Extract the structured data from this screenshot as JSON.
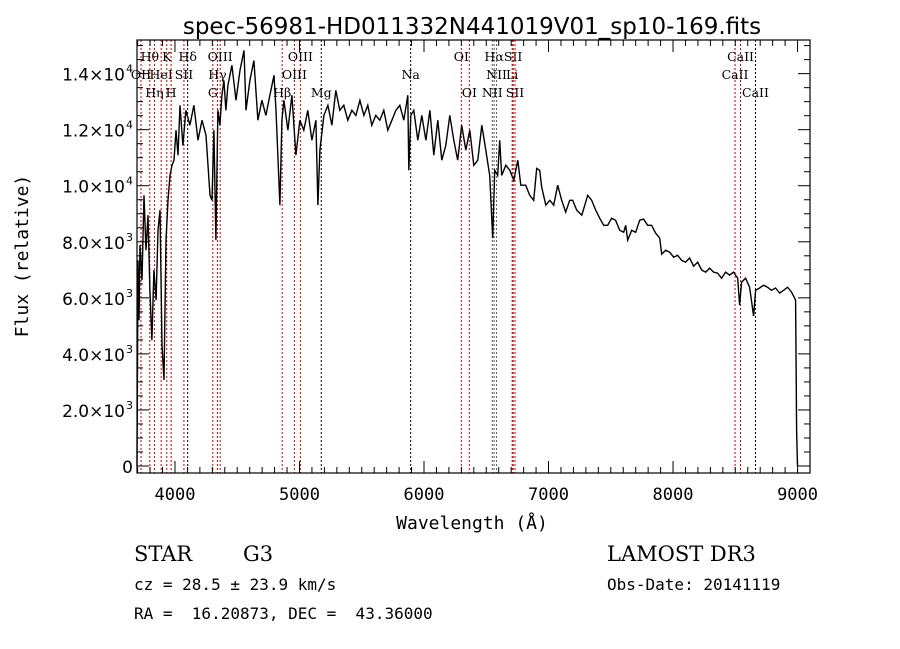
{
  "chart_data": {
    "type": "line",
    "title": "spec-56981-HD011332N441019V01_sp10-169.fits",
    "xlabel": "Wavelength (Å)",
    "ylabel": "Flux (relative)",
    "xlim": [
      3695,
      9100
    ],
    "ylim": [
      -250,
      15200
    ],
    "grid": false,
    "x_ticks": [
      {
        "value": 4000,
        "label": "4000"
      },
      {
        "value": 5000,
        "label": "5000"
      },
      {
        "value": 6000,
        "label": "6000"
      },
      {
        "value": 7000,
        "label": "7000"
      },
      {
        "value": 8000,
        "label": "8000"
      },
      {
        "value": 9000,
        "label": "9000"
      }
    ],
    "y_ticks": [
      {
        "value": 0,
        "mant": "0",
        "exp": ""
      },
      {
        "value": 2000,
        "mant": "2.0×10",
        "exp": "3"
      },
      {
        "value": 4000,
        "mant": "4.0×10",
        "exp": "3"
      },
      {
        "value": 6000,
        "mant": "6.0×10",
        "exp": "3"
      },
      {
        "value": 8000,
        "mant": "8.0×10",
        "exp": "3"
      },
      {
        "value": 10000,
        "mant": "1.0×10",
        "exp": "4"
      },
      {
        "value": 12000,
        "mant": "1.2×10",
        "exp": "4"
      },
      {
        "value": 14000,
        "mant": "1.4×10",
        "exp": "4"
      }
    ],
    "series": [
      {
        "name": "spectrum",
        "wavelength": [
          3695,
          3703,
          3711,
          3719,
          3735,
          3751,
          3767,
          3783,
          3799,
          3815,
          3831,
          3848,
          3864,
          3880,
          3896,
          3912,
          3928,
          3944,
          3960,
          3976,
          3992,
          4008,
          4024,
          4040,
          4064,
          4088,
          4120,
          4152,
          4185,
          4217,
          4249,
          4281,
          4297,
          4313,
          4329,
          4345,
          4361,
          4377,
          4393,
          4409,
          4425,
          4457,
          4490,
          4522,
          4554,
          4570,
          4602,
          4634,
          4666,
          4698,
          4730,
          4762,
          4795,
          4811,
          4843,
          4859,
          4875,
          4907,
          4939,
          4971,
          5003,
          5035,
          5067,
          5100,
          5132,
          5148,
          5164,
          5196,
          5228,
          5260,
          5292,
          5324,
          5356,
          5388,
          5421,
          5453,
          5485,
          5517,
          5549,
          5581,
          5613,
          5645,
          5677,
          5709,
          5742,
          5774,
          5806,
          5838,
          5870,
          5878,
          5894,
          5918,
          5950,
          5982,
          6015,
          6047,
          6079,
          6111,
          6143,
          6175,
          6207,
          6239,
          6271,
          6303,
          6336,
          6368,
          6400,
          6432,
          6464,
          6496,
          6528,
          6552,
          6568,
          6592,
          6608,
          6624,
          6657,
          6689,
          6721,
          6753,
          6777,
          6817,
          6849,
          6881,
          6905,
          6929,
          6945,
          6978,
          7010,
          7042,
          7074,
          7106,
          7138,
          7170,
          7194,
          7226,
          7267,
          7315,
          7347,
          7379,
          7411,
          7443,
          7475,
          7507,
          7539,
          7572,
          7604,
          7620,
          7636,
          7668,
          7700,
          7732,
          7764,
          7796,
          7828,
          7860,
          7893,
          7909,
          7941,
          7973,
          8005,
          8037,
          8069,
          8101,
          8133,
          8165,
          8198,
          8230,
          8262,
          8294,
          8326,
          8358,
          8390,
          8422,
          8454,
          8486,
          8519,
          8535,
          8551,
          8583,
          8615,
          8647,
          8663,
          8695,
          8727,
          8759,
          8791,
          8824,
          8856,
          8888,
          8920,
          8952,
          8984,
          8992,
          9000
        ],
        "flux": [
          0,
          7340,
          5200,
          7880,
          6630,
          9660,
          7700,
          8950,
          6270,
          4490,
          6990,
          5920,
          8410,
          9130,
          4310,
          3070,
          8060,
          9480,
          10370,
          10730,
          10910,
          11980,
          11090,
          12870,
          11440,
          12690,
          12160,
          12870,
          11620,
          12340,
          11800,
          9660,
          9480,
          11980,
          8060,
          12690,
          12160,
          13230,
          13760,
          12690,
          13580,
          14300,
          13050,
          14120,
          14830,
          12690,
          13760,
          14470,
          12340,
          13050,
          12510,
          13230,
          13940,
          12690,
          9310,
          12340,
          13050,
          11980,
          13230,
          11090,
          12340,
          11980,
          12690,
          11620,
          12340,
          9310,
          11270,
          12510,
          12870,
          12160,
          13400,
          12690,
          12870,
          12340,
          12690,
          12510,
          13050,
          12510,
          12870,
          12160,
          12510,
          12340,
          12690,
          11980,
          12340,
          12690,
          12870,
          12340,
          13230,
          10550,
          12510,
          12690,
          11620,
          12510,
          11620,
          12690,
          11090,
          12340,
          10910,
          11440,
          12510,
          11620,
          10910,
          12160,
          11270,
          11980,
          10730,
          10910,
          12160,
          11270,
          10370,
          8130,
          10550,
          10370,
          11620,
          10370,
          10730,
          10550,
          10200,
          10910,
          10020,
          10020,
          9660,
          9480,
          10620,
          10550,
          9950,
          9310,
          9480,
          9310,
          10020,
          9480,
          9060,
          9480,
          9480,
          9130,
          8950,
          9660,
          9480,
          9130,
          8840,
          8590,
          8590,
          8840,
          8770,
          8410,
          8340,
          8590,
          8060,
          8410,
          8340,
          8770,
          8810,
          8590,
          8590,
          8310,
          8130,
          7560,
          7700,
          7630,
          7450,
          7520,
          7340,
          7270,
          7420,
          7130,
          7270,
          6990,
          6920,
          7060,
          6920,
          6880,
          6700,
          6920,
          6810,
          6920,
          6700,
          5740,
          6560,
          6700,
          6380,
          5350,
          6270,
          6350,
          6450,
          6380,
          6270,
          6350,
          6170,
          6270,
          6380,
          6200,
          5920,
          1280,
          0
        ]
      }
    ],
    "line_markers": [
      {
        "label": "OII",
        "wavelength": 3727,
        "row": 2,
        "color": "#c00000"
      },
      {
        "label": "Hθ",
        "wavelength": 3798,
        "row": 1,
        "color": "#c00000"
      },
      {
        "label": "Hη",
        "wavelength": 3835,
        "row": 3,
        "color": "#c00000"
      },
      {
        "label": "HeI",
        "wavelength": 3889,
        "row": 2,
        "color": "#c00000"
      },
      {
        "label": "K",
        "wavelength": 3934,
        "row": 1,
        "color": "#c00000"
      },
      {
        "label": "H",
        "wavelength": 3969,
        "row": 3,
        "color": "#c00000"
      },
      {
        "label": "SII",
        "wavelength": 4072,
        "row": 2,
        "color": "#c00000"
      },
      {
        "label": "Hδ",
        "wavelength": 4102,
        "row": 1,
        "color": "#000000"
      },
      {
        "label": "G",
        "wavelength": 4304,
        "row": 3,
        "color": "#c00000"
      },
      {
        "label": "Hγ",
        "wavelength": 4341,
        "row": 2,
        "color": "#c00000"
      },
      {
        "label": "OIII",
        "wavelength": 4363,
        "row": 1,
        "color": "#c00000"
      },
      {
        "label": "Hβ",
        "wavelength": 4861,
        "row": 3,
        "color": "#c00000"
      },
      {
        "label": "OIII",
        "wavelength": 4959,
        "row": 2,
        "color": "#c00000"
      },
      {
        "label": "OIII",
        "wavelength": 5007,
        "row": 1,
        "color": "#c00000"
      },
      {
        "label": "Mg",
        "wavelength": 5175,
        "row": 3,
        "color": "#000000"
      },
      {
        "label": "Na",
        "wavelength": 5893,
        "row": 2,
        "color": "#000000"
      },
      {
        "label": "OI",
        "wavelength": 6300,
        "row": 1,
        "color": "#c00000"
      },
      {
        "label": "OI",
        "wavelength": 6364,
        "row": 3,
        "color": "#c00000"
      },
      {
        "label": "NII",
        "wavelength": 6548,
        "row": 3,
        "color": "#555555"
      },
      {
        "label": "Hα",
        "wavelength": 6563,
        "row": 1,
        "color": "#555555"
      },
      {
        "label": "NII",
        "wavelength": 6583,
        "row": 2,
        "color": "#555555"
      },
      {
        "label": "Li",
        "wavelength": 6708,
        "row": 2,
        "color": "#c00000"
      },
      {
        "label": "SII",
        "wavelength": 6716,
        "row": 1,
        "color": "#c00000"
      },
      {
        "label": "SII",
        "wavelength": 6731,
        "row": 3,
        "color": "#c00000"
      },
      {
        "label": "CaII",
        "wavelength": 8498,
        "row": 2,
        "color": "#c00000"
      },
      {
        "label": "CaII",
        "wavelength": 8542,
        "row": 1,
        "color": "#c00000"
      },
      {
        "label": "CaII",
        "wavelength": 8662,
        "row": 3,
        "color": "#000000"
      }
    ]
  },
  "info": {
    "object_class": "STAR",
    "subclass": "G3",
    "survey": "LAMOST DR3",
    "redshift": "cz = 28.5 ± 23.9 km/s",
    "obs_date": "Obs-Date: 20141119",
    "coords": "RA =  16.20873, DEC =  43.36000"
  }
}
